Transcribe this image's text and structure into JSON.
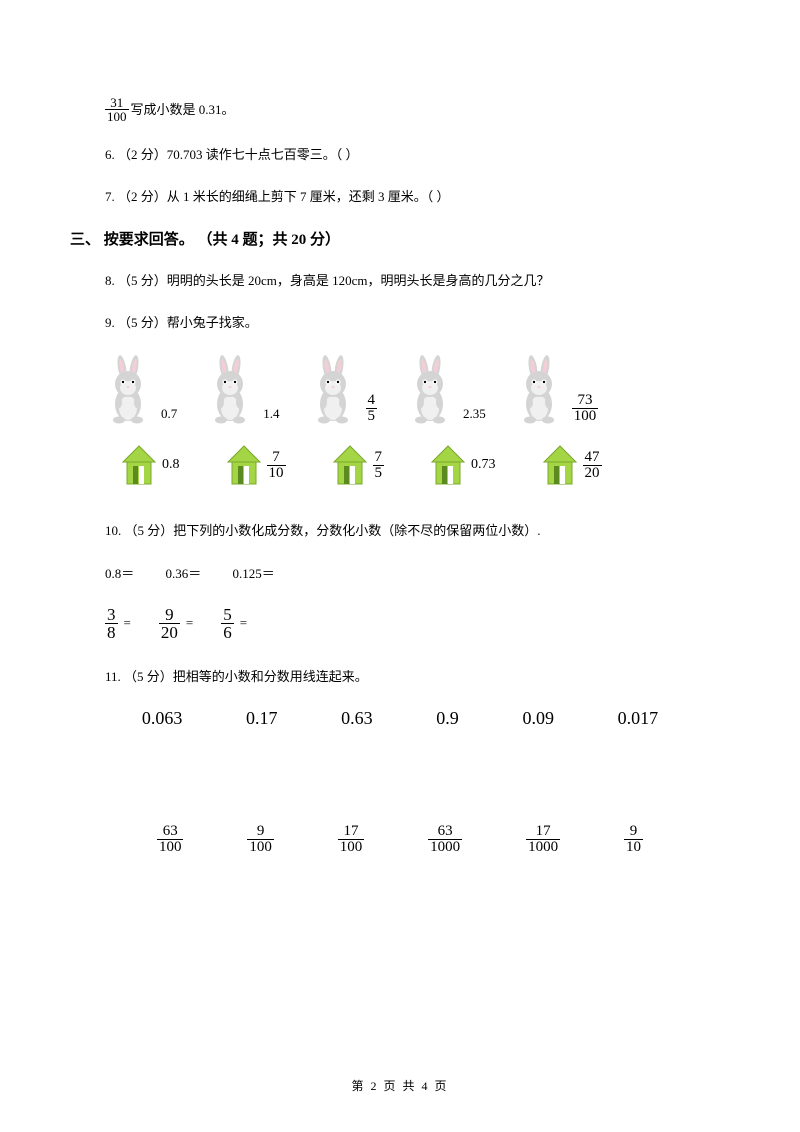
{
  "top_fraction": {
    "num": "31",
    "den": "100"
  },
  "top_text": "写成小数是 0.31。",
  "q6": "6.  （2 分）70.703 读作七十点七百零三。（        ）",
  "q7": "7.  （2 分）从 1 米长的细绳上剪下 7 厘米，还剩 3 厘米。（        ）",
  "section3": "三、 按要求回答。 （共 4 题；共 20 分）",
  "q8": "8.  （5 分）明明的头长是 20cm，身高是 120cm，明明头长是身高的几分之几？",
  "q9": "9.  （5 分）帮小兔子找家。",
  "rabbits": [
    {
      "label": "0.7",
      "type": "dec"
    },
    {
      "label": "1.4",
      "type": "dec"
    },
    {
      "num": "4",
      "den": "5",
      "type": "frac"
    },
    {
      "label": "2.35",
      "type": "dec"
    },
    {
      "num": "73",
      "den": "100",
      "type": "frac"
    }
  ],
  "houses": [
    {
      "label": "0.8",
      "type": "dec"
    },
    {
      "num": "7",
      "den": "10",
      "type": "frac"
    },
    {
      "num": "7",
      "den": "5",
      "type": "frac"
    },
    {
      "label": "0.73",
      "type": "dec"
    },
    {
      "num": "47",
      "den": "20",
      "type": "frac"
    }
  ],
  "q10": "10.  （5 分）把下列的小数化成分数，分数化小数（除不尽的保留两位小数）.",
  "q10_dec": [
    "0.8＝",
    "0.36＝",
    "0.125＝"
  ],
  "q10_frac": [
    {
      "num": "3",
      "den": "8"
    },
    {
      "num": "9",
      "den": "20"
    },
    {
      "num": "5",
      "den": "6"
    }
  ],
  "q11": "11.  （5 分）把相等的小数和分数用线连起来。",
  "match_top": [
    "0.063",
    "0.17",
    "0.63",
    "0.9",
    "0.09",
    "0.017"
  ],
  "match_bot": [
    {
      "num": "63",
      "den": "100"
    },
    {
      "num": "9",
      "den": "100"
    },
    {
      "num": "17",
      "den": "100"
    },
    {
      "num": "63",
      "den": "1000"
    },
    {
      "num": "17",
      "den": "1000"
    },
    {
      "num": "9",
      "den": "10"
    }
  ],
  "footer": "第 2 页 共 4 页",
  "colors": {
    "house_fill": "#a4d544",
    "house_stroke": "#7aa82e",
    "house_door": "#ffffff",
    "house_bar": "#5b8a1f",
    "rabbit_body": "#d4d4d4",
    "rabbit_inner": "#f0f0f0",
    "rabbit_pink": "#f5cdd6"
  }
}
